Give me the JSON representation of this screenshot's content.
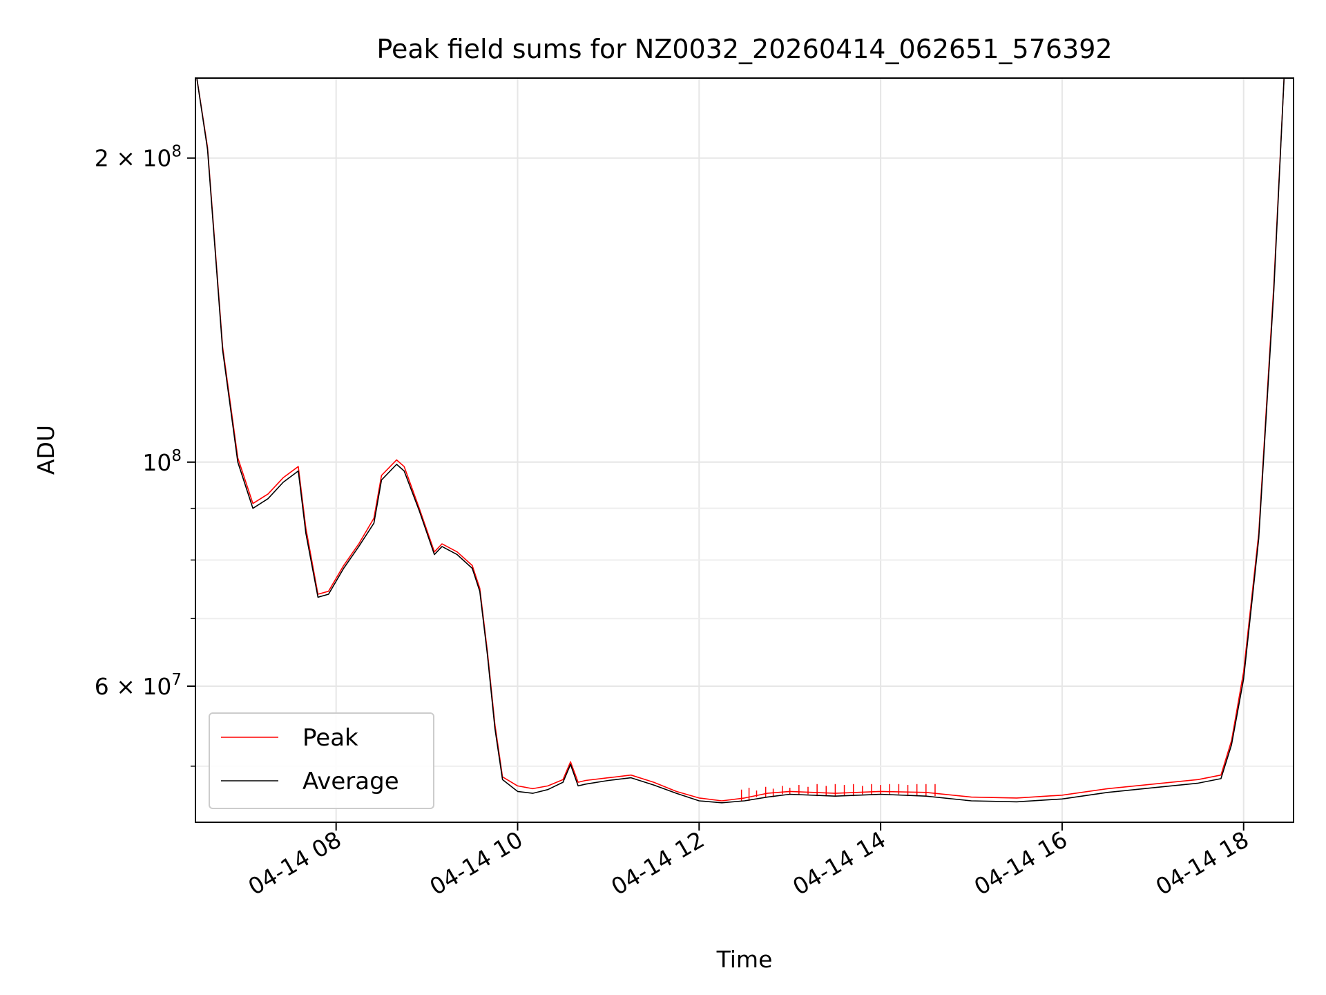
{
  "chart_data": {
    "type": "line",
    "title": "Peak field sums for NZ0032_20260414_062651_576392",
    "xlabel": "Time",
    "ylabel": "ADU",
    "y_scale": "log",
    "xlim": [
      "04-14 06:27",
      "04-14 18:33"
    ],
    "ylim": [
      44000000,
      240000000
    ],
    "grid": true,
    "legend_position": "lower-left",
    "x_ticks": [
      {
        "time": "04-14 08:00",
        "label": "04-14 08"
      },
      {
        "time": "04-14 10:00",
        "label": "04-14 10"
      },
      {
        "time": "04-14 12:00",
        "label": "04-14 12"
      },
      {
        "time": "04-14 14:00",
        "label": "04-14 14"
      },
      {
        "time": "04-14 16:00",
        "label": "04-14 16"
      },
      {
        "time": "04-14 18:00",
        "label": "04-14 18"
      }
    ],
    "y_major_ticks": [
      {
        "value": 60000000,
        "mantissa": "6",
        "exponent": "7"
      },
      {
        "value": 100000000,
        "mantissa": "",
        "exponent": "8"
      },
      {
        "value": 200000000,
        "mantissa": "2",
        "exponent": "8"
      }
    ],
    "y_minor_ticks": [
      50000000,
      70000000,
      80000000,
      90000000,
      300000000
    ],
    "series": [
      {
        "name": "Peak",
        "color": "#ff0000",
        "x": [
          "04-14 06:27",
          "04-14 06:35",
          "04-14 06:45",
          "04-14 06:55",
          "04-14 07:05",
          "04-14 07:15",
          "04-14 07:25",
          "04-14 07:35",
          "04-14 07:40",
          "04-14 07:48",
          "04-14 07:55",
          "04-14 08:05",
          "04-14 08:15",
          "04-14 08:25",
          "04-14 08:30",
          "04-14 08:40",
          "04-14 08:45",
          "04-14 08:55",
          "04-14 09:05",
          "04-14 09:10",
          "04-14 09:20",
          "04-14 09:30",
          "04-14 09:35",
          "04-14 09:40",
          "04-14 09:45",
          "04-14 09:50",
          "04-14 10:00",
          "04-14 10:10",
          "04-14 10:20",
          "04-14 10:30",
          "04-14 10:35",
          "04-14 10:40",
          "04-14 10:45",
          "04-14 11:00",
          "04-14 11:15",
          "04-14 11:30",
          "04-14 11:45",
          "04-14 12:00",
          "04-14 12:15",
          "04-14 12:30",
          "04-14 12:45",
          "04-14 13:00",
          "04-14 13:30",
          "04-14 14:00",
          "04-14 14:30",
          "04-14 15:00",
          "04-14 15:30",
          "04-14 16:00",
          "04-14 16:30",
          "04-14 17:00",
          "04-14 17:30",
          "04-14 17:45",
          "04-14 17:52",
          "04-14 18:00",
          "04-14 18:10",
          "04-14 18:20",
          "04-14 18:27"
        ],
        "values": [
          245000000.0,
          205000000.0,
          130000000.0,
          101000000.0,
          91000000.0,
          93000000.0,
          96500000.0,
          99000000.0,
          86000000.0,
          74000000.0,
          74500000.0,
          79000000.0,
          83000000.0,
          88000000.0,
          97000000.0,
          100500000.0,
          99000000.0,
          90000000.0,
          81500000.0,
          83000000.0,
          81500000.0,
          79000000.0,
          75000000.0,
          65000000.0,
          55000000.0,
          48800000.0,
          47800000.0,
          47500000.0,
          47800000.0,
          48500000.0,
          50500000.0,
          48200000.0,
          48400000.0,
          48700000.0,
          49000000.0,
          48200000.0,
          47200000.0,
          46500000.0,
          46200000.0,
          46500000.0,
          47000000.0,
          47200000.0,
          47000000.0,
          47200000.0,
          47100000.0,
          46600000.0,
          46500000.0,
          46800000.0,
          47500000.0,
          48000000.0,
          48500000.0,
          49000000.0,
          53000000.0,
          62000000.0,
          85000000.0,
          150000000.0,
          245000000.0
        ]
      },
      {
        "name": "Average",
        "color": "#000000",
        "x": [
          "04-14 06:27",
          "04-14 06:35",
          "04-14 06:45",
          "04-14 06:55",
          "04-14 07:05",
          "04-14 07:15",
          "04-14 07:25",
          "04-14 07:35",
          "04-14 07:40",
          "04-14 07:48",
          "04-14 07:55",
          "04-14 08:05",
          "04-14 08:15",
          "04-14 08:25",
          "04-14 08:30",
          "04-14 08:40",
          "04-14 08:45",
          "04-14 08:55",
          "04-14 09:05",
          "04-14 09:10",
          "04-14 09:20",
          "04-14 09:30",
          "04-14 09:35",
          "04-14 09:40",
          "04-14 09:45",
          "04-14 09:50",
          "04-14 10:00",
          "04-14 10:10",
          "04-14 10:20",
          "04-14 10:30",
          "04-14 10:35",
          "04-14 10:40",
          "04-14 10:45",
          "04-14 11:00",
          "04-14 11:15",
          "04-14 11:30",
          "04-14 11:45",
          "04-14 12:00",
          "04-14 12:15",
          "04-14 12:30",
          "04-14 12:45",
          "04-14 13:00",
          "04-14 13:30",
          "04-14 14:00",
          "04-14 14:30",
          "04-14 15:00",
          "04-14 15:30",
          "04-14 16:00",
          "04-14 16:30",
          "04-14 17:00",
          "04-14 17:30",
          "04-14 17:45",
          "04-14 17:52",
          "04-14 18:00",
          "04-14 18:10",
          "04-14 18:20",
          "04-14 18:27"
        ],
        "values": [
          245000000.0,
          204000000.0,
          129000000.0,
          100000000.0,
          90000000.0,
          92000000.0,
          95500000.0,
          98000000.0,
          85000000.0,
          73500000.0,
          74000000.0,
          78500000.0,
          82500000.0,
          87000000.0,
          96000000.0,
          99500000.0,
          98000000.0,
          89500000.0,
          81000000.0,
          82500000.0,
          81000000.0,
          78500000.0,
          74500000.0,
          64500000.0,
          54500000.0,
          48500000.0,
          47200000.0,
          47000000.0,
          47400000.0,
          48200000.0,
          50200000.0,
          47800000.0,
          48000000.0,
          48400000.0,
          48700000.0,
          47900000.0,
          47000000.0,
          46200000.0,
          46000000.0,
          46200000.0,
          46600000.0,
          46900000.0,
          46700000.0,
          46900000.0,
          46700000.0,
          46200000.0,
          46100000.0,
          46400000.0,
          47100000.0,
          47600000.0,
          48100000.0,
          48600000.0,
          52500000.0,
          61000000.0,
          84000000.0,
          148000000.0,
          245000000.0
        ]
      }
    ],
    "peak_spikes": {
      "color": "#ff0000",
      "times": [
        "04-14 12:28",
        "04-14 12:33",
        "04-14 12:38",
        "04-14 12:44",
        "04-14 12:49",
        "04-14 12:55",
        "04-14 13:00",
        "04-14 13:06",
        "04-14 13:12",
        "04-14 13:18",
        "04-14 13:24",
        "04-14 13:30",
        "04-14 13:36",
        "04-14 13:42",
        "04-14 13:48",
        "04-14 13:54",
        "04-14 14:00",
        "04-14 14:06",
        "04-14 14:12",
        "04-14 14:18",
        "04-14 14:24",
        "04-14 14:30",
        "04-14 14:36"
      ],
      "values": [
        47400000.0,
        47600000.0,
        47300000.0,
        47700000.0,
        47500000.0,
        47800000.0,
        47600000.0,
        47900000.0,
        47700000.0,
        48000000.0,
        47800000.0,
        48000000.0,
        47900000.0,
        48000000.0,
        47800000.0,
        48000000.0,
        47900000.0,
        48000000.0,
        48000000.0,
        47900000.0,
        48000000.0,
        48000000.0,
        48000000.0
      ]
    }
  }
}
